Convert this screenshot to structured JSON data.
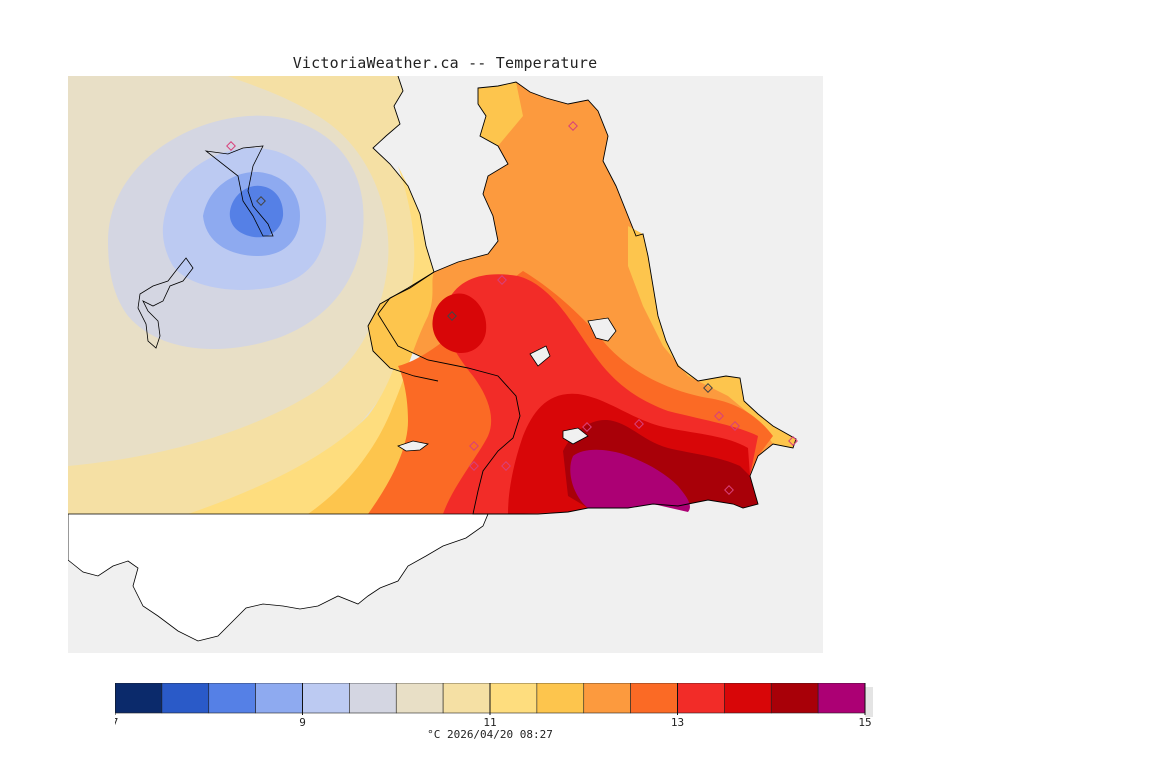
{
  "title": "VictoriaWeather.ca -- Temperature",
  "caption": "°C  2026/04/20 08:27",
  "colors": {
    "water": "#f0f0f0",
    "land_nodata": "#ffffff",
    "coast": "#000000",
    "station": "#d8407a"
  },
  "legend": {
    "min": 7,
    "max": 15,
    "tick_labels": [
      "7",
      "9",
      "11",
      "13",
      "15"
    ],
    "bins": [
      {
        "from": 7.0,
        "to": 7.5,
        "color": "#0b2a6b"
      },
      {
        "from": 7.5,
        "to": 8.0,
        "color": "#2a5ac8"
      },
      {
        "from": 8.0,
        "to": 8.5,
        "color": "#5580e6"
      },
      {
        "from": 8.5,
        "to": 9.0,
        "color": "#8eaaf0"
      },
      {
        "from": 9.0,
        "to": 9.5,
        "color": "#bccaf2"
      },
      {
        "from": 9.5,
        "to": 10.0,
        "color": "#d4d6e2"
      },
      {
        "from": 10.0,
        "to": 10.5,
        "color": "#e8dfc6"
      },
      {
        "from": 10.5,
        "to": 11.0,
        "color": "#f5e0a4"
      },
      {
        "from": 11.0,
        "to": 11.5,
        "color": "#fedd7e"
      },
      {
        "from": 11.5,
        "to": 12.0,
        "color": "#fdc54d"
      },
      {
        "from": 12.0,
        "to": 12.5,
        "color": "#fc9a3e"
      },
      {
        "from": 12.5,
        "to": 13.0,
        "color": "#fb6a25"
      },
      {
        "from": 13.0,
        "to": 13.5,
        "color": "#f22c28"
      },
      {
        "from": 13.5,
        "to": 14.0,
        "color": "#d80608"
      },
      {
        "from": 14.0,
        "to": 14.5,
        "color": "#a80008"
      },
      {
        "from": 14.5,
        "to": 15.0,
        "color": "#ac0074"
      }
    ]
  }
}
